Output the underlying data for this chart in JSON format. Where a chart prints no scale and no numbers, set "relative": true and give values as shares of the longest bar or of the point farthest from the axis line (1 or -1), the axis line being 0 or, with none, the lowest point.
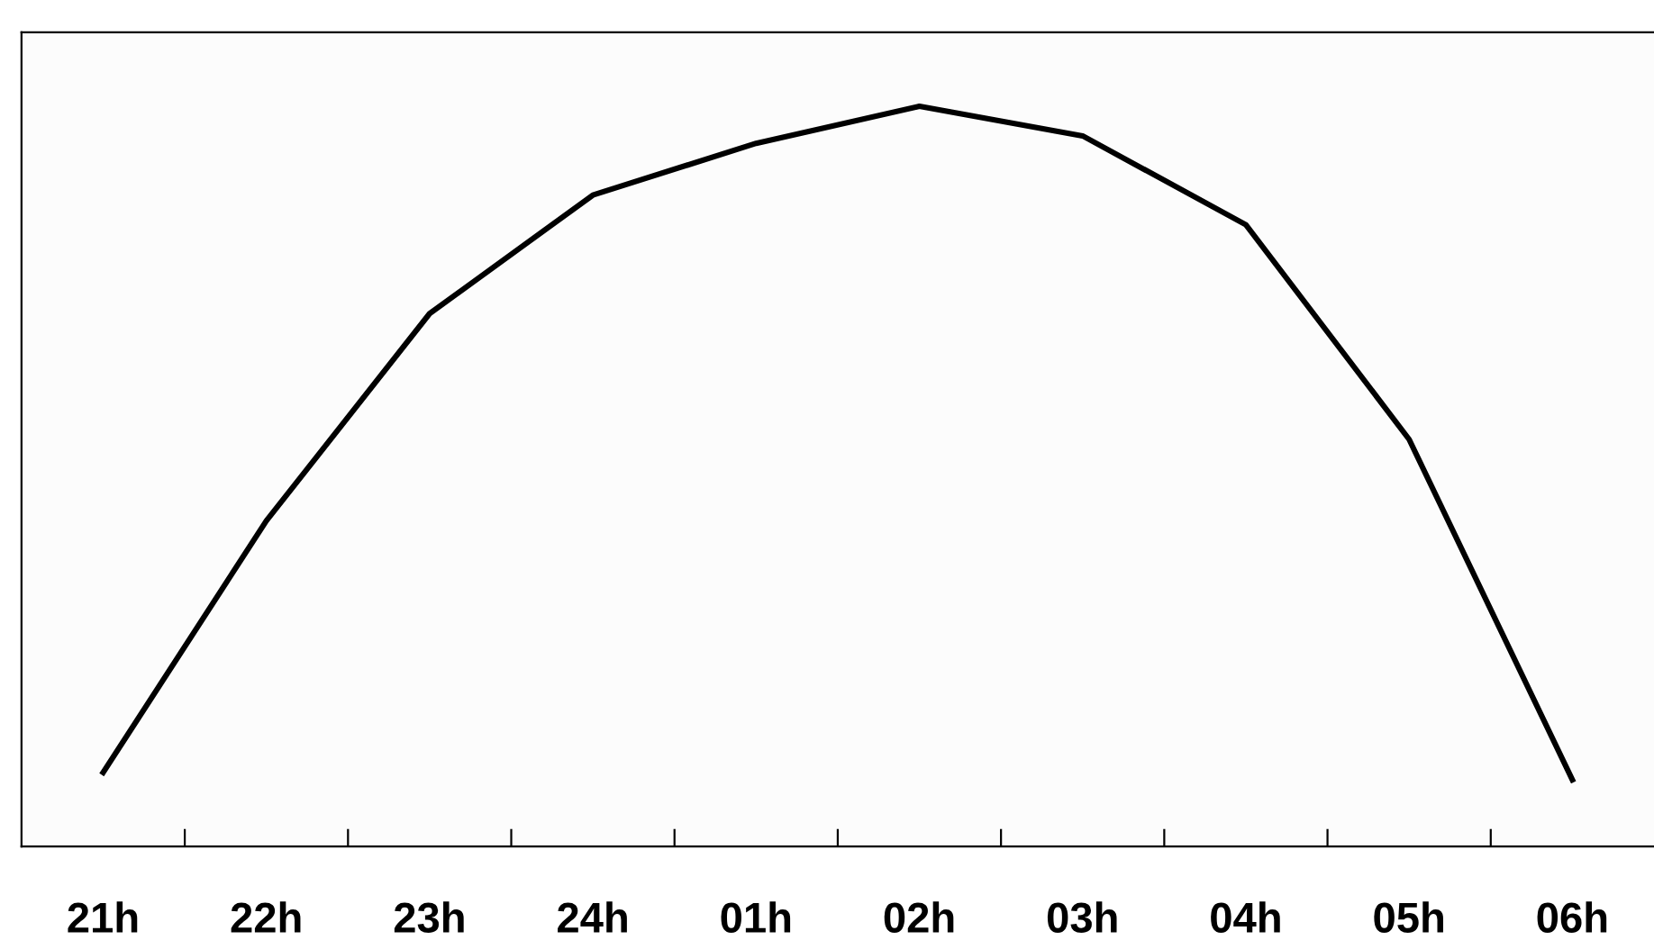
{
  "chart_data": {
    "type": "line",
    "relative": true,
    "categories": [
      "21h",
      "22h",
      "23h",
      "24h",
      "01h",
      "02h",
      "03h",
      "04h",
      "05h",
      "06h"
    ],
    "series": [
      {
        "color": "#000000",
        "values": [
          0.1,
          0.44,
          0.72,
          0.88,
          0.95,
          1,
          0.96,
          0.84,
          0.55,
          0.09
        ]
      }
    ],
    "marker": "none",
    "line_style": "solid",
    "grid": false
  }
}
